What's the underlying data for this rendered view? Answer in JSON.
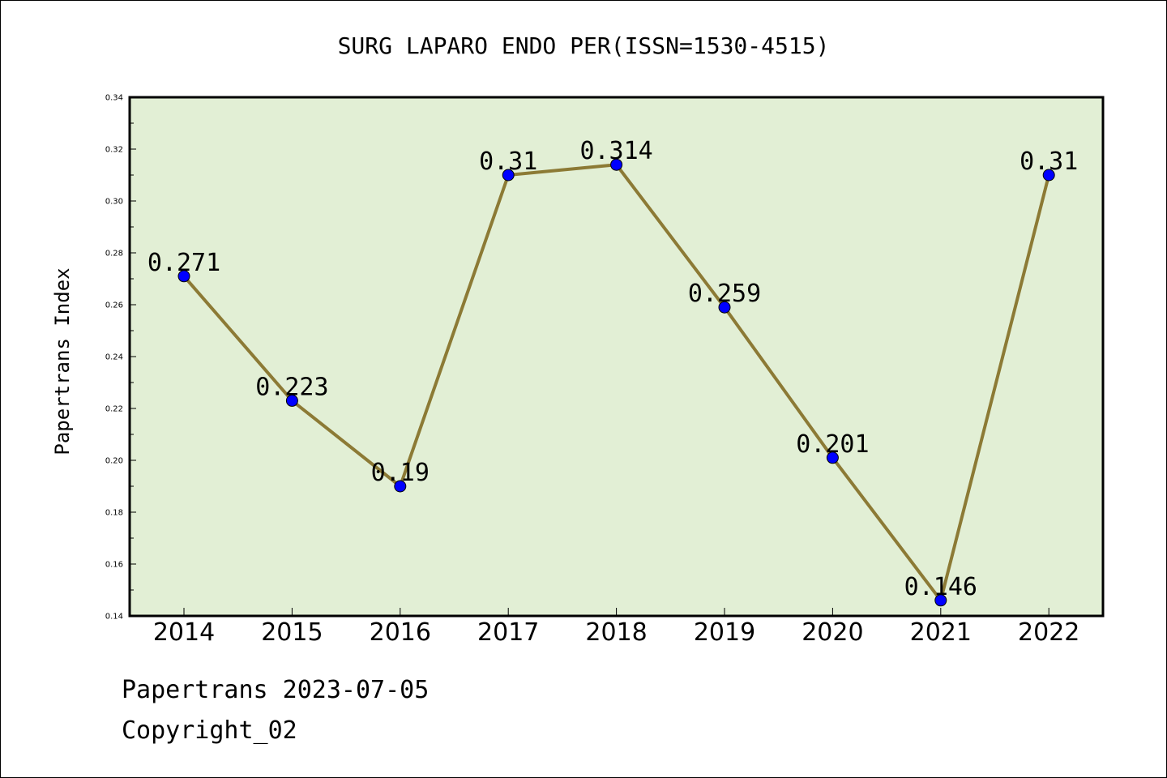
{
  "chart_data": {
    "type": "line",
    "title": "SURG LAPARO ENDO PER(ISSN=1530-4515)",
    "ylabel": "Papertrans Index",
    "xlabel": "",
    "categories": [
      "2014",
      "2015",
      "2016",
      "2017",
      "2018",
      "2019",
      "2020",
      "2021",
      "2022"
    ],
    "series": [
      {
        "values": [
          0.271,
          0.223,
          0.19,
          0.31,
          0.314,
          0.259,
          0.201,
          0.146,
          0.31
        ],
        "labels": [
          "0.271",
          "0.223",
          "0.19",
          "0.31",
          "0.314",
          "0.259",
          "0.201",
          "0.146",
          "0.31"
        ]
      }
    ],
    "ylim": [
      0.14,
      0.34
    ],
    "yticks": [
      "0.14",
      "0.16",
      "0.18",
      "0.20",
      "0.22",
      "0.24",
      "0.26",
      "0.28",
      "0.30",
      "0.32",
      "0.34"
    ],
    "grid": false,
    "legend": "none",
    "colors": {
      "plot_background": "#e2efd5",
      "line": "#8c7a35",
      "marker": "#0000ff"
    }
  },
  "footer": {
    "line1": "Papertrans 2023-07-05",
    "line2": "Copyright_02"
  }
}
